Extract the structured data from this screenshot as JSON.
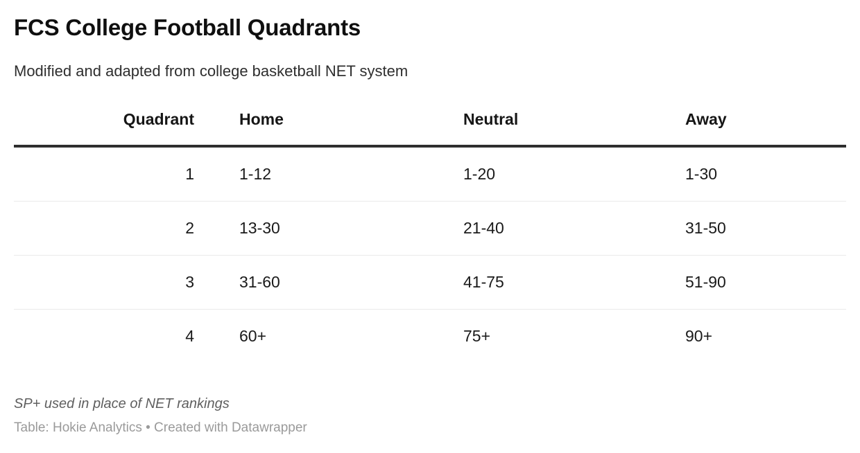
{
  "chart_data": {
    "type": "table",
    "title": "FCS College Football Quadrants",
    "subtitle": "Modified and adapted from college basketball NET system",
    "columns": [
      "Quadrant",
      "Home",
      "Neutral",
      "Away"
    ],
    "column_alignments": [
      "right",
      "left",
      "left",
      "left"
    ],
    "rows": [
      [
        "1",
        "1-12",
        "1-20",
        "1-30"
      ],
      [
        "2",
        "13-30",
        "21-40",
        "31-50"
      ],
      [
        "3",
        "31-60",
        "41-75",
        "51-90"
      ],
      [
        "4",
        "60+",
        "75+",
        "90+"
      ]
    ],
    "note": "SP+ used in place of NET rankings",
    "attribution": "Table: Hokie Analytics • Created with Datawrapper",
    "layout": {
      "grid": "horizontal-row-separators-only",
      "header_rule": "thick-dark",
      "legend": "none"
    }
  },
  "colors": {
    "background": "#ffffff",
    "title_text": "#0f0f0f",
    "subtitle_text": "#2e2e2e",
    "body_text": "#1a1a1a",
    "header_rule": "#2e2e2e",
    "row_separator": "#eaeaea",
    "note_text": "#5f5f5f",
    "attribution_text": "#9a9a9a"
  }
}
